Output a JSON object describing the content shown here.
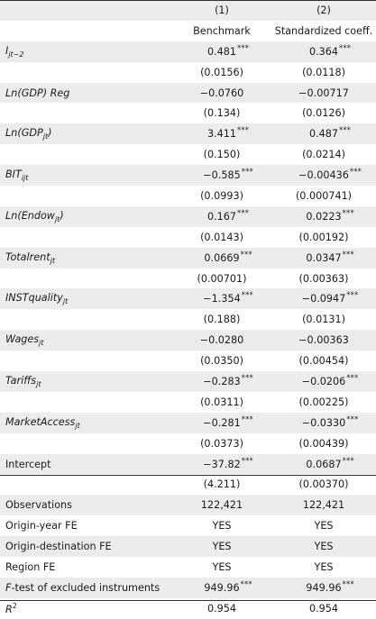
{
  "header": {
    "col1_num": "(1)",
    "col2_num": "(2)",
    "col1_name": "Benchmark",
    "col2_name": "Standardized coeff."
  },
  "coef_rows": [
    {
      "label_main": "I",
      "label_sub": "jt−2",
      "italic": true,
      "b1": "0.481",
      "s1": "***",
      "b2": "0.364",
      "s2": "***",
      "se1": "(0.0156)",
      "se2": "(0.0118)"
    },
    {
      "label_main": "Ln(GDP) Reg",
      "label_sub": "",
      "italic": true,
      "b1": "−0.0760",
      "s1": "",
      "b2": "−0.00717",
      "s2": "",
      "se1": "(0.134)",
      "se2": "(0.0126)"
    },
    {
      "label_main": "Ln(GDP",
      "label_sub": "jt",
      "label_tail": ")",
      "italic": true,
      "b1": "3.411",
      "s1": "***",
      "b2": "0.487",
      "s2": "***",
      "se1": "(0.150)",
      "se2": "(0.0214)"
    },
    {
      "label_main": "BIT",
      "label_sub": "ijt",
      "italic": true,
      "b1": "−0.585",
      "s1": "***",
      "b2": "−0.00436",
      "s2": "***",
      "se1": "(0.0993)",
      "se2": "(0.000741)"
    },
    {
      "label_main": "Ln(Endow",
      "label_sub": "jt",
      "label_tail": ")",
      "italic": true,
      "b1": "0.167",
      "s1": "***",
      "b2": "0.0223",
      "s2": "***",
      "se1": "(0.0143)",
      "se2": "(0.00192)"
    },
    {
      "label_main": "Totalrent",
      "label_sub": "jt",
      "italic": true,
      "b1": "0.0669",
      "s1": "***",
      "b2": "0.0347",
      "s2": "***",
      "se1": "(0.00701)",
      "se2": "(0.00363)"
    },
    {
      "label_main": "INSTquality",
      "label_sub": "jt",
      "italic": true,
      "b1": "−1.354",
      "s1": "***",
      "b2": "−0.0947",
      "s2": "***",
      "se1": "(0.188)",
      "se2": "(0.0131)"
    },
    {
      "label_main": "Wages",
      "label_sub": "jt",
      "italic": true,
      "b1": "−0.0280",
      "s1": "",
      "b2": "−0.00363",
      "s2": "",
      "se1": "(0.0350)",
      "se2": "(0.00454)"
    },
    {
      "label_main": "Tariffs",
      "label_sub": "jt",
      "italic": true,
      "b1": "−0.283",
      "s1": "***",
      "b2": "−0.0206",
      "s2": "***",
      "se1": "(0.0311)",
      "se2": "(0.00225)"
    },
    {
      "label_main": "MarketAccess",
      "label_sub": "jt",
      "italic": true,
      "b1": "−0.281",
      "s1": "***",
      "b2": "−0.0330",
      "s2": "***",
      "se1": "(0.0373)",
      "se2": "(0.00439)"
    },
    {
      "label_main": "Intercept",
      "label_sub": "",
      "italic": false,
      "b1": "−37.82",
      "s1": "***",
      "b2": "0.0687",
      "s2": "***",
      "se1": "(4.211)",
      "se2": "(0.00370)"
    }
  ],
  "stat_rows": [
    {
      "label": "Observations",
      "v1": "122,421",
      "s1": "",
      "v2": "122,421",
      "s2": ""
    },
    {
      "label": "Origin-year FE",
      "v1": "YES",
      "s1": "",
      "v2": "YES",
      "s2": ""
    },
    {
      "label": "Origin-destination FE",
      "v1": "YES",
      "s1": "",
      "v2": "YES",
      "s2": ""
    },
    {
      "label": "Region FE",
      "v1": "YES",
      "s1": "",
      "v2": "YES",
      "s2": ""
    },
    {
      "label_italic": "F",
      "label": "-test of excluded instruments",
      "v1": "949.96",
      "s1": "***",
      "v2": "949.96",
      "s2": "***"
    },
    {
      "label_italic": "R",
      "label_sup": "2",
      "label": "",
      "v1": "0.954",
      "s1": "",
      "v2": "0.954",
      "s2": ""
    }
  ]
}
